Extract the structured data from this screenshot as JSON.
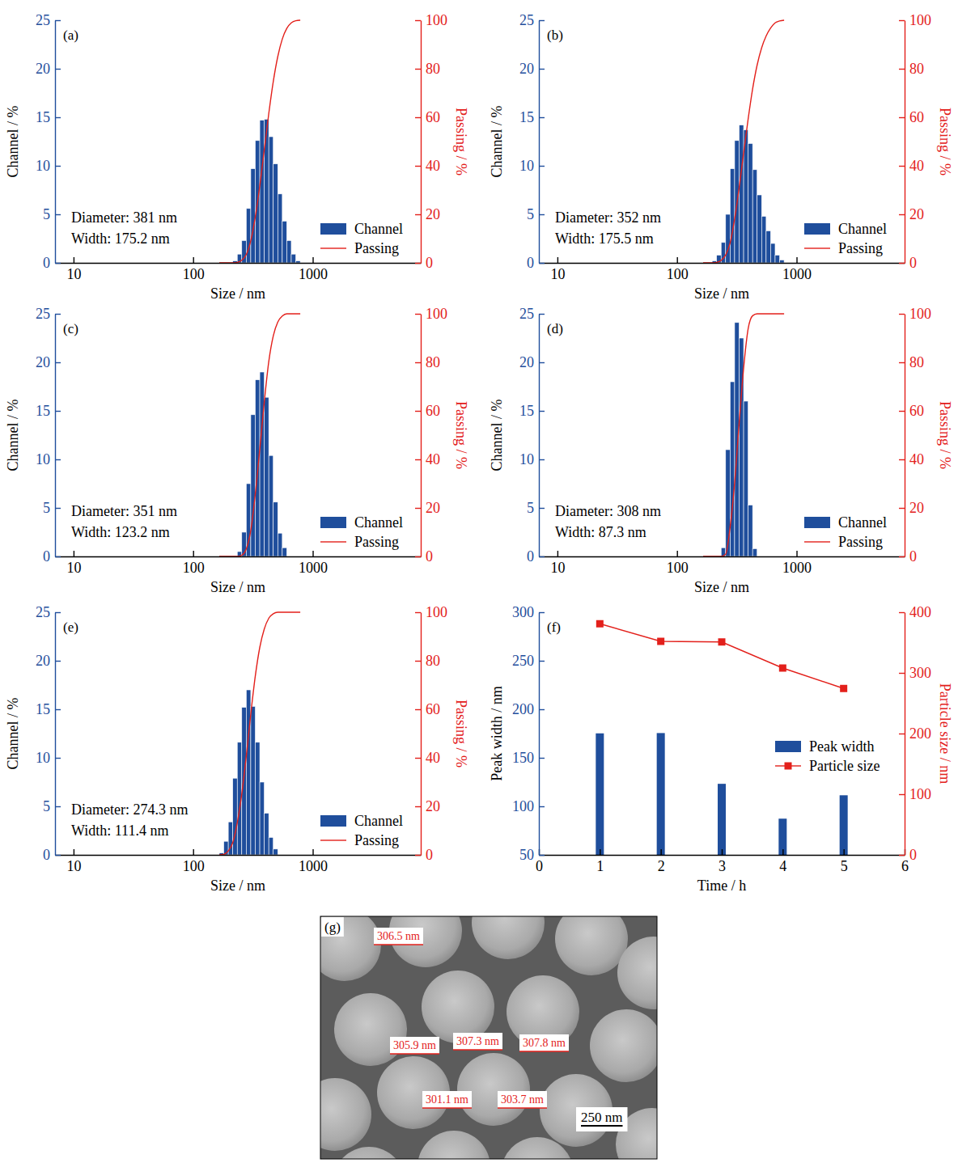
{
  "chart_data": [
    {
      "type": "histogram",
      "label": "(a)",
      "x_label": "Size / nm",
      "y_label": "Channel / %",
      "y2_label": "Passing / %",
      "log": "x",
      "xlim": [
        7,
        8000
      ],
      "xticks": [
        10,
        100,
        1000
      ],
      "ylim": [
        0,
        25
      ],
      "yticks": [
        0,
        5,
        10,
        15,
        20,
        25
      ],
      "y2lim": [
        0,
        100
      ],
      "y2ticks": [
        0,
        20,
        40,
        60,
        80,
        100
      ],
      "legend": "lower right",
      "annotations": [
        "Diameter: 381 nm",
        "Width: 175.2 nm"
      ],
      "bins": [
        165.4,
        180.4,
        196.7,
        214.5,
        233.9,
        255.0,
        278.1,
        303.3,
        330.7,
        360.7,
        393.3,
        428.9,
        467.7,
        510.0,
        556.2,
        606.5,
        661.4,
        721.3,
        786.6
      ],
      "series": [
        {
          "name": "Channel",
          "type": "bar",
          "color": "#1f4e9c",
          "values": [
            0,
            0,
            0,
            0.2,
            0.9,
            2.3,
            5.6,
            9.7,
            12.6,
            14.7,
            14.8,
            13.0,
            10.2,
            7.1,
            4.3,
            2.3,
            0.9,
            0.2
          ]
        },
        {
          "name": "Passing",
          "type": "line",
          "color": "#e3201b",
          "axis": "y2",
          "x": [
            165.4,
            180.4,
            196.7,
            214.5,
            233.9,
            255.0,
            278.1,
            303.3,
            330.7,
            360.7,
            393.3,
            428.9,
            467.7,
            510.0,
            556.2,
            606.5,
            661.4,
            721.3,
            786.6
          ],
          "values": [
            0,
            0,
            0,
            0,
            0.2,
            1.1,
            3.4,
            9.1,
            18.9,
            31.7,
            46.6,
            61.5,
            74.7,
            85.0,
            92.2,
            96.6,
            98.9,
            99.8,
            100
          ]
        }
      ]
    },
    {
      "type": "histogram",
      "label": "(b)",
      "x_label": "Size / nm",
      "y_label": "Channel / %",
      "y2_label": "Passing / %",
      "log": "x",
      "xlim": [
        7,
        8000
      ],
      "xticks": [
        10,
        100,
        1000
      ],
      "ylim": [
        0,
        25
      ],
      "yticks": [
        0,
        5,
        10,
        15,
        20,
        25
      ],
      "y2lim": [
        0,
        100
      ],
      "y2ticks": [
        0,
        20,
        40,
        60,
        80,
        100
      ],
      "legend": "lower right",
      "annotations": [
        "Diameter: 352 nm",
        "Width: 175.5 nm"
      ],
      "bins": [
        165.4,
        180.4,
        196.7,
        214.5,
        233.9,
        255.0,
        278.1,
        303.3,
        330.7,
        360.7,
        393.3,
        428.9,
        467.7,
        510.0,
        556.2,
        606.5,
        661.4,
        721.3,
        786.6
      ],
      "series": [
        {
          "name": "Channel",
          "type": "bar",
          "color": "#1f4e9c",
          "values": [
            0,
            0,
            0.2,
            0.8,
            2.1,
            5.0,
            9.7,
            12.6,
            14.2,
            13.7,
            12.3,
            9.6,
            7.0,
            4.8,
            3.3,
            2.0,
            0.8,
            0.3
          ]
        },
        {
          "name": "Passing",
          "type": "line",
          "color": "#e3201b",
          "axis": "y2",
          "x": [
            165.4,
            180.4,
            196.7,
            214.5,
            233.9,
            255.0,
            278.1,
            303.3,
            330.7,
            360.7,
            393.3,
            428.9,
            467.7,
            510.0,
            556.2,
            606.5,
            661.4,
            721.3,
            786.6
          ],
          "values": [
            0,
            0,
            0,
            0.2,
            1.0,
            3.2,
            8.2,
            18.1,
            30.9,
            45.3,
            59.2,
            71.7,
            81.5,
            88.6,
            93.5,
            96.8,
            98.9,
            99.7,
            100
          ]
        }
      ]
    },
    {
      "type": "histogram",
      "label": "(c)",
      "x_label": "Size / nm",
      "y_label": "Channel / %",
      "y2_label": "Passing / %",
      "log": "x",
      "xlim": [
        7,
        8000
      ],
      "xticks": [
        10,
        100,
        1000
      ],
      "ylim": [
        0,
        25
      ],
      "yticks": [
        0,
        5,
        10,
        15,
        20,
        25
      ],
      "y2lim": [
        0,
        100
      ],
      "y2ticks": [
        0,
        20,
        40,
        60,
        80,
        100
      ],
      "legend": "lower right",
      "annotations": [
        "Diameter: 351 nm",
        "Width: 123.2 nm"
      ],
      "bins": [
        165.4,
        180.4,
        196.7,
        214.5,
        233.9,
        255.0,
        278.1,
        303.3,
        330.7,
        360.7,
        393.3,
        428.9,
        467.7,
        510.0,
        556.2,
        606.5,
        661.4,
        721.3,
        786.6
      ],
      "series": [
        {
          "name": "Channel",
          "type": "bar",
          "color": "#1f4e9c",
          "values": [
            0,
            0,
            0,
            0,
            0.5,
            2.5,
            7.5,
            14.6,
            18.2,
            19.0,
            16.4,
            10.4,
            5.6,
            2.4,
            0.9,
            0,
            0,
            0
          ]
        },
        {
          "name": "Passing",
          "type": "line",
          "color": "#e3201b",
          "axis": "y2",
          "x": [
            165.4,
            180.4,
            196.7,
            214.5,
            233.9,
            255.0,
            278.1,
            303.3,
            330.7,
            360.7,
            393.3,
            428.9,
            467.7,
            510.0,
            556.2,
            606.5,
            661.4,
            721.3,
            786.6
          ],
          "values": [
            0,
            0,
            0,
            0,
            0,
            0.5,
            3.1,
            10.7,
            25.6,
            44.2,
            63.6,
            80.3,
            90.9,
            96.6,
            99.1,
            100,
            100,
            100,
            100
          ]
        }
      ]
    },
    {
      "type": "histogram",
      "label": "(d)",
      "x_label": "Size / nm",
      "y_label": "Channel / %",
      "y2_label": "Passing / %",
      "log": "x",
      "xlim": [
        7,
        8000
      ],
      "xticks": [
        10,
        100,
        1000
      ],
      "ylim": [
        0,
        25
      ],
      "yticks": [
        0,
        5,
        10,
        15,
        20,
        25
      ],
      "y2lim": [
        0,
        100
      ],
      "y2ticks": [
        0,
        20,
        40,
        60,
        80,
        100
      ],
      "legend": "lower right",
      "annotations": [
        "Diameter: 308 nm",
        "Width: 87.3 nm"
      ],
      "bins": [
        165.4,
        180.4,
        196.7,
        214.5,
        233.9,
        255.0,
        278.1,
        303.3,
        330.7,
        360.7,
        393.3,
        428.9,
        467.7,
        510.0,
        556.2,
        606.5,
        661.4,
        721.3,
        786.6
      ],
      "series": [
        {
          "name": "Channel",
          "type": "bar",
          "color": "#1f4e9c",
          "values": [
            0,
            0,
            0,
            0,
            0.9,
            11.0,
            18.0,
            24.1,
            22.5,
            16.0,
            5.3,
            0.8,
            0,
            0,
            0,
            0,
            0,
            0
          ]
        },
        {
          "name": "Passing",
          "type": "line",
          "color": "#e3201b",
          "axis": "y2",
          "x": [
            165.4,
            180.4,
            196.7,
            214.5,
            233.9,
            255.0,
            278.1,
            303.3,
            330.7,
            360.7,
            393.3,
            428.9,
            467.7,
            510.0,
            556.2,
            606.5,
            661.4,
            721.3,
            786.6
          ],
          "values": [
            0,
            0,
            0,
            0,
            0,
            0.9,
            12.1,
            30.3,
            54.8,
            77.6,
            93.8,
            99.2,
            100,
            100,
            100,
            100,
            100,
            100,
            100
          ]
        }
      ]
    },
    {
      "type": "histogram",
      "label": "(e)",
      "x_label": "Size / nm",
      "y_label": "Channel / %",
      "y2_label": "Passing / %",
      "log": "x",
      "xlim": [
        7,
        8000
      ],
      "xticks": [
        10,
        100,
        1000
      ],
      "ylim": [
        0,
        25
      ],
      "yticks": [
        0,
        5,
        10,
        15,
        20,
        25
      ],
      "y2lim": [
        0,
        100
      ],
      "y2ticks": [
        0,
        20,
        40,
        60,
        80,
        100
      ],
      "legend": "lower right",
      "annotations": [
        "Diameter: 274.3 nm",
        "Width: 111.4 nm"
      ],
      "bins": [
        165.4,
        180.4,
        196.7,
        214.5,
        233.9,
        255.0,
        278.1,
        303.3,
        330.7,
        360.7,
        393.3,
        428.9,
        467.7,
        510.0,
        556.2,
        606.5,
        661.4,
        721.3,
        786.6
      ],
      "series": [
        {
          "name": "Channel",
          "type": "bar",
          "color": "#1f4e9c",
          "values": [
            0.2,
            1.4,
            3.4,
            7.9,
            11.6,
            15.2,
            17.0,
            15.3,
            11.6,
            7.5,
            4.3,
            1.8,
            0.6,
            0,
            0,
            0,
            0,
            0
          ]
        },
        {
          "name": "Passing",
          "type": "line",
          "color": "#e3201b",
          "axis": "y2",
          "x": [
            165.4,
            180.4,
            196.7,
            214.5,
            233.9,
            255.0,
            278.1,
            303.3,
            330.7,
            360.7,
            393.3,
            428.9,
            467.7,
            510.0,
            556.2,
            606.5,
            661.4,
            721.3,
            786.6
          ],
          "values": [
            0,
            0.2,
            1.6,
            5.1,
            13.2,
            25.1,
            40.6,
            58.0,
            73.6,
            85.5,
            93.1,
            97.5,
            99.4,
            100,
            100,
            100,
            100,
            100,
            100
          ]
        }
      ]
    },
    {
      "type": "bar",
      "label": "(f)",
      "x_label": "Time / h",
      "y_label": "Peak width / nm",
      "y2_label": "Particle size / nm",
      "x": [
        1,
        2,
        3,
        4,
        5
      ],
      "xlim": [
        0,
        6
      ],
      "xticks": [
        0,
        1,
        2,
        3,
        4,
        5,
        6
      ],
      "ylim": [
        50,
        300
      ],
      "yticks": [
        50,
        100,
        150,
        200,
        250,
        300
      ],
      "y2lim": [
        0,
        400
      ],
      "y2ticks": [
        0,
        100,
        200,
        300,
        400
      ],
      "legend": "right",
      "series": [
        {
          "name": "Peak width",
          "type": "bar",
          "color": "#1f4e9c",
          "values": [
            175.2,
            175.5,
            123.2,
            87.3,
            111.4
          ]
        },
        {
          "name": "Particle size",
          "type": "line",
          "color": "#e3201b",
          "axis": "y2",
          "marker": "square",
          "values": [
            381,
            352,
            351,
            308,
            274.3
          ]
        }
      ]
    }
  ],
  "image": {
    "label": "(g)",
    "annotations": [
      "306.5 nm",
      "305.9 nm",
      "307.3 nm",
      "307.8 nm",
      "301.1 nm",
      "303.7 nm"
    ],
    "scale_bar": "250 nm"
  }
}
